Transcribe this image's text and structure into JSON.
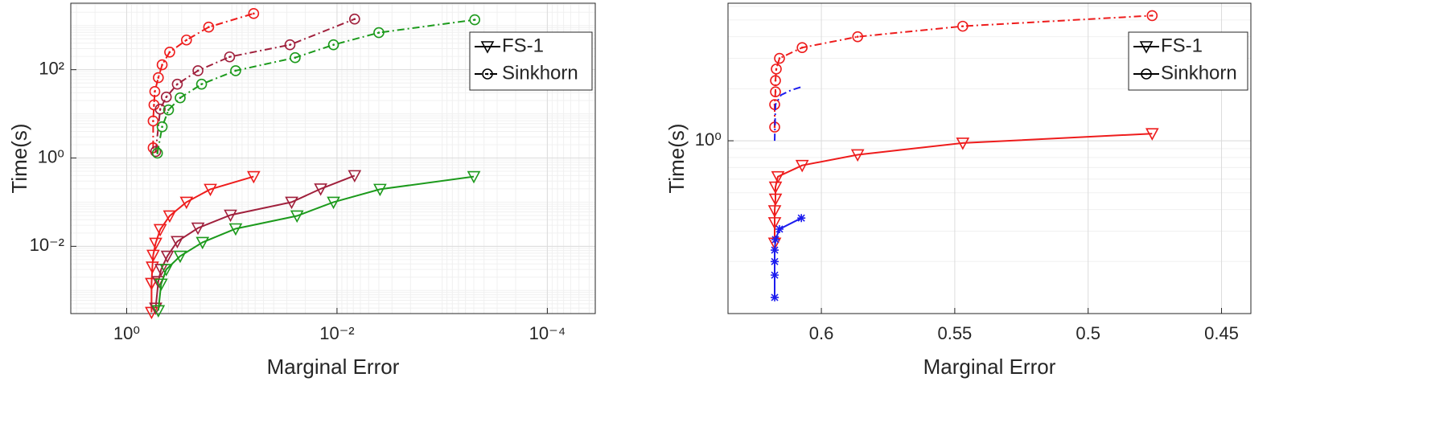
{
  "chart_data": [
    {
      "type": "line",
      "xlabel": "Marginal Error",
      "ylabel": "Time(s)",
      "xscale": "log",
      "yscale": "log",
      "xlim": [
        3.4,
        3.5e-05
      ],
      "ylim": [
        0.0003,
        3200
      ],
      "xticks": [
        {
          "value": 1,
          "label": "10⁰"
        },
        {
          "value": 0.01,
          "label": "10⁻²"
        },
        {
          "value": 0.0001,
          "label": "10⁻⁴"
        }
      ],
      "yticks": [
        {
          "value": 0.01,
          "label": "10⁻²"
        },
        {
          "value": 1,
          "label": "10⁰"
        },
        {
          "value": 100,
          "label": "10²"
        }
      ],
      "grid": true,
      "minor_grid": true,
      "legend_position": "upper right",
      "legend": [
        {
          "name": "FS-1",
          "marker": "triangle",
          "dash": "solid"
        },
        {
          "name": "Sinkhorn",
          "marker": "circle",
          "dash": "dashdot"
        }
      ],
      "series": [
        {
          "color": "#ee1c1c",
          "marker": "circle",
          "dash": "dashdot",
          "x": [
            0.56,
            0.56,
            0.55,
            0.54,
            0.5,
            0.46,
            0.39,
            0.27,
            0.166,
            0.062
          ],
          "values": [
            1.7,
            6.9,
            16,
            32,
            66,
            129,
            250,
            470,
            920,
            1870
          ]
        },
        {
          "color": "#a0203c",
          "marker": "circle",
          "dash": "dashdot",
          "x": [
            0.53,
            0.48,
            0.42,
            0.33,
            0.21,
            0.105,
            0.028,
            0.0068
          ],
          "values": [
            1.4,
            12.8,
            24,
            47,
            95,
            195,
            366,
            1400
          ]
        },
        {
          "color": "#1c9a1c",
          "marker": "circle",
          "dash": "dashdot",
          "x": [
            0.51,
            0.46,
            0.4,
            0.31,
            0.194,
            0.092,
            0.025,
            0.0108,
            0.004,
            0.00049
          ],
          "values": [
            1.29,
            5.1,
            12.3,
            23,
            47,
            95,
            187,
            366,
            690,
            1350
          ]
        },
        {
          "color": "#ee1c1c",
          "marker": "triangle",
          "dash": "solid",
          "x": [
            0.58,
            0.58,
            0.57,
            0.56,
            0.53,
            0.48,
            0.39,
            0.27,
            0.16,
            0.062
          ],
          "values": [
            0.00032,
            0.00145,
            0.0034,
            0.0063,
            0.0118,
            0.024,
            0.049,
            0.1,
            0.196,
            0.38
          ]
        },
        {
          "color": "#a0203c",
          "marker": "triangle",
          "dash": "solid",
          "x": [
            0.53,
            0.5,
            0.47,
            0.41,
            0.33,
            0.21,
            0.103,
            0.027,
            0.0143,
            0.0068
          ],
          "values": [
            0.0004,
            0.0016,
            0.003,
            0.006,
            0.0129,
            0.026,
            0.051,
            0.1,
            0.2,
            0.4
          ]
        },
        {
          "color": "#1c9a1c",
          "marker": "triangle",
          "dash": "solid",
          "x": [
            0.5,
            0.47,
            0.42,
            0.31,
            0.19,
            0.092,
            0.024,
            0.0108,
            0.0039,
            0.0005
          ],
          "values": [
            0.00035,
            0.0014,
            0.003,
            0.006,
            0.0123,
            0.025,
            0.049,
            0.1,
            0.196,
            0.38
          ]
        }
      ]
    },
    {
      "type": "line",
      "xlabel": "Marginal Error",
      "ylabel": "Time(s)",
      "xscale": "linear",
      "yscale": "log",
      "xlim": [
        0.635,
        0.439
      ],
      "ylim": [
        0.1,
        6.25
      ],
      "xticks": [
        0.6,
        0.55,
        0.5,
        0.45
      ],
      "yticks": [
        {
          "value": 1,
          "label": "10⁰"
        }
      ],
      "grid": true,
      "minor_grid": true,
      "legend_position": "upper right",
      "legend": [
        {
          "name": "FS-1",
          "marker": "triangle",
          "dash": "solid"
        },
        {
          "name": "Sinkhorn",
          "marker": "circle",
          "dash": "solid"
        }
      ],
      "series": [
        {
          "color": "#ee1c1c",
          "marker": "circle",
          "dash": "dashdot",
          "x": [
            0.6175,
            0.6175,
            0.6172,
            0.6172,
            0.6169,
            0.6157,
            0.6072,
            0.5864,
            0.547,
            0.476
          ],
          "values": [
            1.2,
            1.62,
            1.92,
            2.23,
            2.6,
            3.0,
            3.46,
            4.0,
            4.6,
            5.3
          ]
        },
        {
          "color": "#1c1cee",
          "marker": "none",
          "dash": "dashdot",
          "x": [
            0.6175,
            0.6172,
            0.6151,
            0.6114,
            0.6075
          ],
          "values": [
            1.0,
            1.62,
            1.84,
            1.96,
            2.05
          ]
        },
        {
          "color": "#ee1c1c",
          "marker": "triangle",
          "dash": "solid",
          "x": [
            0.6175,
            0.6175,
            0.6175,
            0.6172,
            0.6172,
            0.6163,
            0.6072,
            0.5864,
            0.547,
            0.476
          ],
          "values": [
            0.256,
            0.336,
            0.394,
            0.46,
            0.54,
            0.62,
            0.72,
            0.83,
            0.97,
            1.1
          ]
        },
        {
          "color": "#1c1cee",
          "marker": "asterisk",
          "dash": "solid",
          "x": [
            0.6175,
            0.6175,
            0.6175,
            0.6175,
            0.6172,
            0.6157,
            0.6075
          ],
          "values": [
            0.124,
            0.167,
            0.2,
            0.233,
            0.268,
            0.308,
            0.357
          ]
        }
      ]
    }
  ]
}
